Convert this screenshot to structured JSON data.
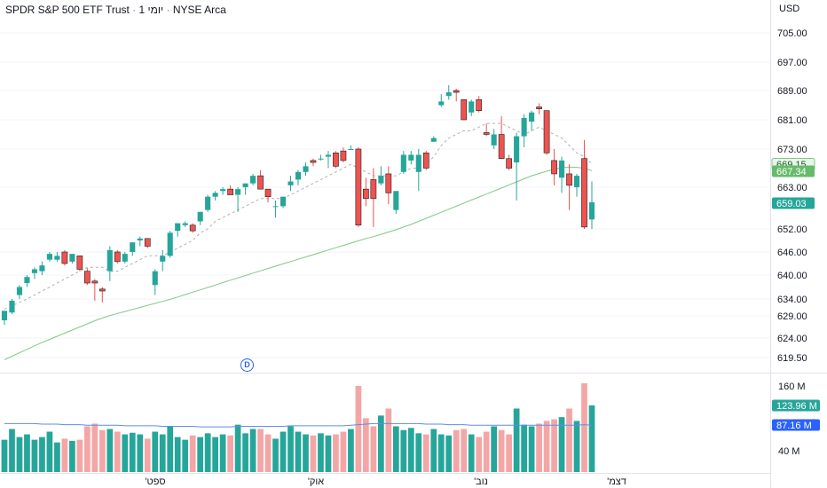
{
  "header": {
    "symbol_name": "SPDR S&P 500 ETF Trust",
    "separator": "·",
    "interval": "1 יומי",
    "exchange": "NYSE Arca"
  },
  "price_axis": {
    "currency": "USD",
    "ticks": [
      "705.00",
      "697.00",
      "689.00",
      "681.00",
      "673.00",
      "663.00",
      "652.00",
      "646.00",
      "640.00",
      "634.00",
      "629.00",
      "624.00",
      "619.50"
    ],
    "tick_values": [
      705,
      697,
      689,
      681,
      673,
      663,
      652,
      646,
      640,
      634,
      629,
      624,
      619.5
    ]
  },
  "volume_axis": {
    "ticks": [
      "160 M",
      "40 M"
    ],
    "tick_values": [
      160,
      40
    ]
  },
  "time_axis": {
    "labels": [
      "ספט'",
      "אוק'",
      "נוב'",
      "דצמ'"
    ]
  },
  "price_badges": {
    "ma_fast": {
      "label": "669.15",
      "value": 669.15,
      "color": "#e8f5e9",
      "text_color": "#1b5e20",
      "border": "#81c784"
    },
    "ma_slow": {
      "label": "667.34",
      "value": 667.34,
      "color": "#66bb6a",
      "text_color": "#ffffff"
    },
    "last": {
      "label": "659.03",
      "value": 659.03,
      "color": "#26a69a",
      "text_color": "#ffffff"
    }
  },
  "volume_badges": {
    "volume": {
      "label": "123.96 M",
      "value": 123.96,
      "color": "#26a69a"
    },
    "volume_ma": {
      "label": "87.16 M",
      "value": 87.16,
      "color": "#2962ff"
    }
  },
  "dividend_marker": "D",
  "colors": {
    "up": "#26a69a",
    "down": "#ef5350",
    "up_volume": "#26a69a",
    "down_volume": "#f4a6a6",
    "ma_fast": "#b0b0b0",
    "ma_slow": "#81c784",
    "volume_ma": "#5b8def",
    "grid": "#f0f3fa",
    "axis_text": "#131722"
  },
  "chart_data": {
    "type": "candlestick",
    "interval": "daily",
    "candles": [
      [
        628.0,
        630.5,
        627.0,
        630.5,
        60
      ],
      [
        630.0,
        634.0,
        629.5,
        633.5,
        80
      ],
      [
        635.0,
        637.5,
        634.0,
        637.0,
        65
      ],
      [
        638.0,
        640.0,
        637.0,
        639.5,
        70
      ],
      [
        640.5,
        642.0,
        639.0,
        641.5,
        60
      ],
      [
        641.0,
        643.5,
        640.0,
        642.5,
        65
      ],
      [
        644.0,
        646.0,
        643.5,
        645.5,
        75
      ],
      [
        644.0,
        646.0,
        643.5,
        645.0,
        55
      ],
      [
        646.0,
        646.5,
        642.5,
        643.0,
        62
      ],
      [
        643.5,
        645.5,
        643.0,
        645.5,
        58
      ],
      [
        645.0,
        645.0,
        641.0,
        641.5,
        60
      ],
      [
        641.0,
        641.8,
        637.5,
        638.0,
        85
      ],
      [
        638.5,
        639.0,
        633.5,
        638.0,
        90
      ],
      [
        636.5,
        637.0,
        633.0,
        636.0,
        78
      ],
      [
        641.0,
        647.5,
        638.5,
        646.5,
        80
      ],
      [
        646.0,
        646.5,
        643.0,
        643.5,
        75
      ],
      [
        643.5,
        646.0,
        643.0,
        645.5,
        70
      ],
      [
        646.0,
        648.5,
        645.0,
        648.5,
        73
      ],
      [
        649.0,
        650.0,
        647.5,
        649.5,
        70
      ],
      [
        649.5,
        649.5,
        647.0,
        647.5,
        62
      ],
      [
        637.5,
        641.5,
        635.0,
        641.0,
        75
      ],
      [
        643.5,
        646.5,
        641.0,
        645.0,
        70
      ],
      [
        645.0,
        651.5,
        644.5,
        651.0,
        85
      ],
      [
        651.5,
        653.5,
        650.0,
        653.5,
        65
      ],
      [
        653.0,
        654.0,
        652.5,
        653.5,
        60
      ],
      [
        653.0,
        653.5,
        651.0,
        651.5,
        68
      ],
      [
        654.0,
        656.5,
        653.0,
        656.5,
        65
      ],
      [
        657.0,
        661.0,
        656.5,
        660.5,
        72
      ],
      [
        660.5,
        662.0,
        659.5,
        661.5,
        65
      ],
      [
        662.0,
        663.0,
        661.0,
        662.5,
        70
      ],
      [
        662.5,
        663.5,
        661.0,
        661.0,
        68
      ],
      [
        661.0,
        663.0,
        656.5,
        662.5,
        88
      ],
      [
        663.0,
        664.0,
        661.0,
        664.0,
        72
      ],
      [
        664.0,
        666.5,
        663.5,
        666.0,
        80
      ],
      [
        666.0,
        667.5,
        662.5,
        662.5,
        80
      ],
      [
        662.5,
        662.5,
        659.0,
        660.5,
        70
      ],
      [
        658.0,
        659.5,
        655.0,
        658.0,
        62
      ],
      [
        658.0,
        660.5,
        657.5,
        660.5,
        75
      ],
      [
        663.5,
        666.0,
        662.0,
        664.5,
        85
      ],
      [
        665.0,
        667.5,
        663.5,
        667.0,
        75
      ],
      [
        667.0,
        669.5,
        666.0,
        668.5,
        70
      ],
      [
        670.0,
        670.5,
        668.5,
        669.5,
        68
      ],
      [
        670.5,
        671.5,
        670.0,
        670.5,
        72
      ],
      [
        671.0,
        672.5,
        668.0,
        671.5,
        68
      ],
      [
        672.0,
        672.5,
        668.0,
        668.5,
        70
      ],
      [
        672.5,
        673.5,
        669.5,
        670.0,
        75
      ],
      [
        673.0,
        674.0,
        673.0,
        673.0,
        80
      ],
      [
        673.0,
        673.5,
        652.5,
        653.0,
        160
      ],
      [
        662.5,
        665.5,
        658.0,
        660.0,
        100
      ],
      [
        665.0,
        668.0,
        652.5,
        660.0,
        85
      ],
      [
        664.0,
        668.5,
        663.5,
        666.0,
        105
      ],
      [
        666.5,
        668.5,
        658.5,
        661.5,
        118
      ],
      [
        657.0,
        662.0,
        656.0,
        662.0,
        85
      ],
      [
        667.0,
        672.5,
        666.5,
        671.5,
        78
      ],
      [
        670.0,
        672.5,
        669.0,
        671.5,
        82
      ],
      [
        667.0,
        673.0,
        662.0,
        671.5,
        72
      ],
      [
        672.0,
        672.5,
        667.5,
        668.0,
        70
      ],
      [
        675.0,
        676.5,
        675.0,
        676.0,
        80
      ],
      [
        685.0,
        688.0,
        684.5,
        686.0,
        70
      ],
      [
        687.5,
        690.5,
        686.5,
        688.5,
        68
      ],
      [
        689.0,
        689.5,
        686.0,
        688.5,
        78
      ],
      [
        686.5,
        686.5,
        681.0,
        681.0,
        80
      ],
      [
        683.0,
        686.5,
        682.0,
        686.0,
        70
      ],
      [
        686.5,
        687.5,
        683.0,
        683.5,
        65
      ],
      [
        677.5,
        680.0,
        676.5,
        677.0,
        75
      ],
      [
        674.0,
        678.5,
        673.0,
        677.0,
        85
      ],
      [
        677.0,
        682.0,
        670.5,
        670.5,
        78
      ],
      [
        670.5,
        671.5,
        667.5,
        668.0,
        70
      ],
      [
        669.5,
        677.5,
        659.5,
        676.5,
        118
      ],
      [
        676.5,
        682.5,
        673.5,
        681.5,
        88
      ],
      [
        680.5,
        683.5,
        678.0,
        683.0,
        85
      ],
      [
        684.5,
        685.5,
        682.5,
        684.0,
        90
      ],
      [
        683.5,
        683.5,
        671.5,
        672.0,
        95
      ],
      [
        670.0,
        673.0,
        663.5,
        666.5,
        98
      ],
      [
        665.5,
        671.0,
        661.5,
        670.0,
        102
      ],
      [
        666.5,
        669.0,
        657.0,
        663.5,
        118
      ],
      [
        663.0,
        666.5,
        660.5,
        666.0,
        95
      ],
      [
        670.5,
        675.5,
        652.0,
        652.5,
        165
      ],
      [
        654.5,
        664.5,
        652.0,
        659.03,
        123.96
      ]
    ],
    "candle_fields": [
      "open",
      "high",
      "low",
      "close",
      "volume_millions"
    ],
    "ma_fast": [
      631,
      632,
      633,
      634,
      635,
      636,
      637,
      638,
      639,
      640,
      641,
      642,
      642,
      642,
      641,
      641,
      642,
      643,
      644,
      645,
      645,
      645,
      646,
      647,
      648,
      649,
      651,
      652,
      654,
      655,
      656,
      657,
      658,
      659,
      660,
      660,
      660,
      660,
      661,
      662,
      663,
      664,
      665,
      666,
      667,
      668,
      669,
      668,
      667,
      666,
      666,
      666,
      666,
      667,
      668,
      668,
      669,
      671,
      674,
      676,
      677,
      678,
      678,
      679,
      680,
      680,
      680,
      679,
      678,
      677,
      678,
      679,
      678,
      677,
      676,
      674,
      672,
      671,
      669.15
    ],
    "ma_slow": [
      619,
      619.8,
      620.6,
      621.4,
      622.2,
      623,
      623.7,
      624.4,
      625.1,
      625.8,
      626.5,
      627.2,
      627.9,
      628.5,
      629.1,
      629.7,
      630.3,
      630.9,
      631.5,
      632.1,
      632.7,
      633.3,
      633.9,
      634.5,
      635.1,
      635.7,
      636.3,
      636.9,
      637.5,
      638.1,
      638.7,
      639.3,
      639.9,
      640.5,
      641.1,
      641.7,
      642.3,
      642.9,
      643.5,
      644.1,
      644.7,
      645.3,
      645.9,
      646.5,
      647.1,
      647.7,
      648.3,
      648.9,
      649.5,
      650,
      650.6,
      651.2,
      651.8,
      652.5,
      653.2,
      654,
      654.8,
      655.6,
      656.4,
      657.2,
      658,
      658.8,
      659.6,
      660.4,
      661.2,
      662,
      662.8,
      663.6,
      664.4,
      665.2,
      666,
      666.6,
      667.2,
      667.7,
      668.1,
      668.3,
      668.2,
      668,
      667.34
    ],
    "volume_ma": [
      90,
      90,
      90,
      90,
      90,
      89,
      89,
      89,
      88,
      88,
      88,
      87,
      87,
      87,
      87,
      87,
      86,
      86,
      86,
      86,
      86,
      85,
      85,
      85,
      85,
      85,
      84,
      84,
      84,
      84,
      84,
      85,
      85,
      85,
      85,
      85,
      85,
      85,
      86,
      86,
      86,
      86,
      86,
      86,
      86,
      86,
      87,
      88,
      89,
      90,
      90,
      90,
      90,
      90,
      90,
      90,
      89,
      89,
      89,
      88,
      88,
      88,
      87,
      87,
      87,
      87,
      87,
      87,
      87,
      87,
      87,
      87,
      87,
      87,
      87,
      87,
      87,
      88,
      87.16
    ]
  }
}
